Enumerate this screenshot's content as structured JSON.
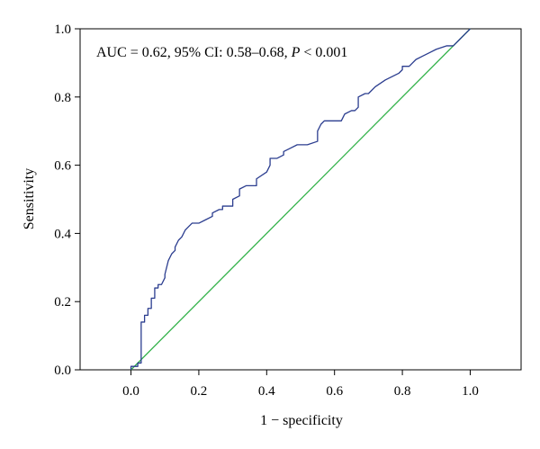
{
  "chart_data": {
    "type": "line",
    "xlabel": "1 − specificity",
    "ylabel": "Sensitivity",
    "xlim": [
      -0.15,
      1.15
    ],
    "ylim": [
      0,
      1
    ],
    "x_ticks": [
      "0.0",
      "0.2",
      "0.4",
      "0.6",
      "0.8",
      "1.0"
    ],
    "x_tick_values": [
      0,
      0.2,
      0.4,
      0.6,
      0.8,
      1.0
    ],
    "y_ticks": [
      "0.0",
      "0.2",
      "0.4",
      "0.6",
      "0.8",
      "1.0"
    ],
    "y_tick_values": [
      0,
      0.2,
      0.4,
      0.6,
      0.8,
      1.0
    ],
    "annotation": {
      "prefix": "AUC = 0.62, 95% CI: 0.58–0.68, ",
      "p_symbol": "P",
      "suffix": " < 0.001"
    },
    "grid": false,
    "series": [
      {
        "color": "#2b3d8f",
        "x": [
          0.0,
          0.0,
          0.02,
          0.02,
          0.03,
          0.03,
          0.04,
          0.04,
          0.05,
          0.05,
          0.06,
          0.06,
          0.07,
          0.07,
          0.08,
          0.08,
          0.09,
          0.1,
          0.1,
          0.11,
          0.12,
          0.13,
          0.13,
          0.14,
          0.15,
          0.16,
          0.17,
          0.18,
          0.19,
          0.2,
          0.22,
          0.24,
          0.24,
          0.26,
          0.27,
          0.27,
          0.3,
          0.3,
          0.32,
          0.32,
          0.34,
          0.36,
          0.37,
          0.37,
          0.4,
          0.41,
          0.41,
          0.43,
          0.45,
          0.45,
          0.47,
          0.49,
          0.52,
          0.55,
          0.55,
          0.56,
          0.57,
          0.59,
          0.62,
          0.63,
          0.65,
          0.66,
          0.67,
          0.67,
          0.69,
          0.7,
          0.72,
          0.75,
          0.77,
          0.79,
          0.8,
          0.8,
          0.82,
          0.83,
          0.84,
          0.86,
          0.88,
          0.9,
          0.93,
          0.95,
          0.96,
          0.97,
          0.98,
          0.99,
          1.0
        ],
        "y": [
          0.0,
          0.01,
          0.01,
          0.02,
          0.02,
          0.14,
          0.14,
          0.16,
          0.16,
          0.18,
          0.18,
          0.21,
          0.21,
          0.24,
          0.24,
          0.25,
          0.25,
          0.27,
          0.28,
          0.32,
          0.34,
          0.35,
          0.36,
          0.38,
          0.39,
          0.41,
          0.42,
          0.43,
          0.43,
          0.43,
          0.44,
          0.45,
          0.46,
          0.47,
          0.47,
          0.48,
          0.48,
          0.5,
          0.51,
          0.53,
          0.54,
          0.54,
          0.54,
          0.56,
          0.58,
          0.6,
          0.62,
          0.62,
          0.63,
          0.64,
          0.65,
          0.66,
          0.66,
          0.67,
          0.7,
          0.72,
          0.73,
          0.73,
          0.73,
          0.75,
          0.76,
          0.76,
          0.77,
          0.8,
          0.81,
          0.81,
          0.83,
          0.85,
          0.86,
          0.87,
          0.88,
          0.89,
          0.89,
          0.9,
          0.91,
          0.92,
          0.93,
          0.94,
          0.95,
          0.95,
          0.96,
          0.97,
          0.98,
          0.99,
          1.0
        ]
      },
      {
        "color": "#33b24a",
        "x": [
          0,
          1
        ],
        "y": [
          0,
          1
        ]
      }
    ]
  }
}
